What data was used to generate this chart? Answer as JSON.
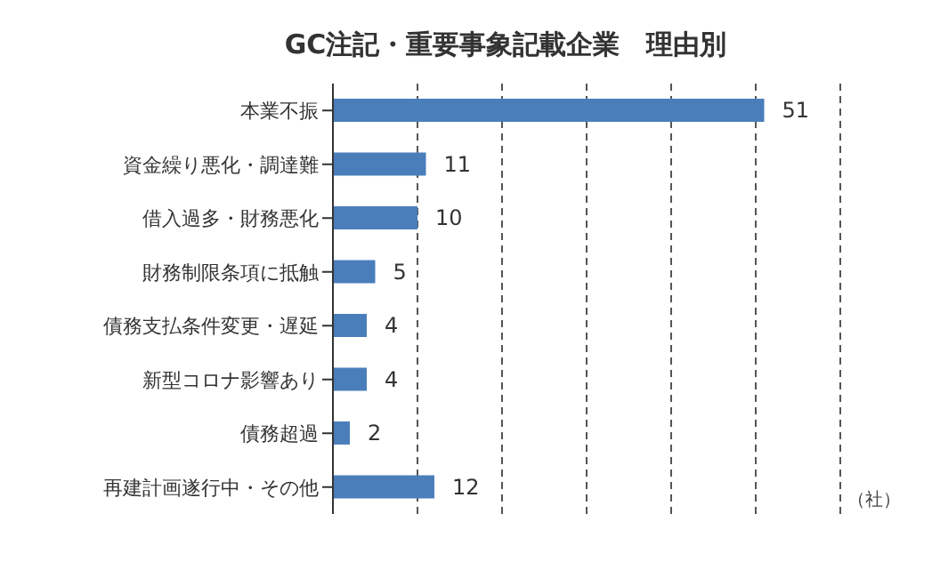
{
  "chart_data": {
    "type": "bar",
    "orientation": "horizontal",
    "title": "GC注記・重要事象記載企業　理由別",
    "categories": [
      "本業不振",
      "資金繰り悪化・調達難",
      "借入過多・財務悪化",
      "財務制限条項に抵触",
      "債務支払条件変更・遅延",
      "新型コロナ影響あり",
      "債務超過",
      "再建計画遂行中・その他"
    ],
    "values": [
      51,
      11,
      10,
      5,
      4,
      4,
      2,
      12
    ],
    "color": "#4a7ebb",
    "data_labels": true,
    "xlim": [
      0,
      60
    ],
    "xticks": [
      {
        "value": 10,
        "label": null
      },
      {
        "value": 20,
        "label": null
      },
      {
        "value": 30,
        "label": null
      },
      {
        "value": 40,
        "label": null
      },
      {
        "value": 50,
        "label": null
      },
      {
        "value": 60,
        "label": null
      }
    ],
    "tick_labels": "y",
    "grid": "x",
    "legend": false,
    "annotations": [
      "（社）"
    ]
  }
}
